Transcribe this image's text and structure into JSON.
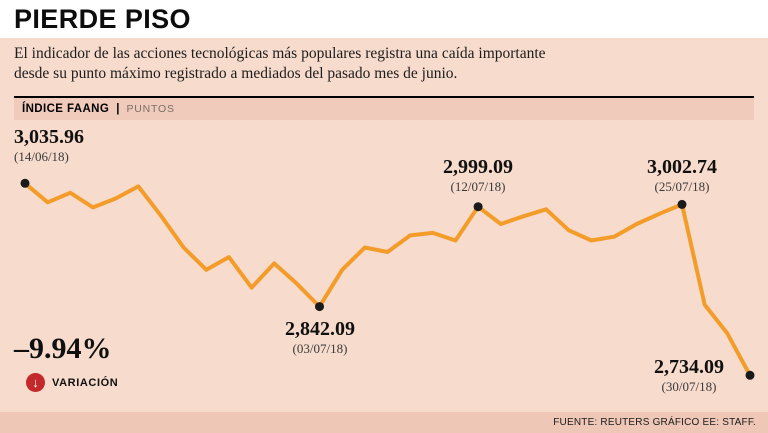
{
  "title": "PIERDE PISO",
  "subtitle": {
    "line1": "El indicador de las acciones tecnológicas más populares registra una caída importante",
    "line2": "desde su punto máximo registrado a mediados del pasado mes de junio."
  },
  "chart_header": {
    "index_label": "ÍNDICE FAANG",
    "divider": "|",
    "units_label": "PUNTOS"
  },
  "variation": {
    "value": "–9.94%",
    "label": "VARIACIÓN",
    "icon": "down-arrow-in-circle",
    "icon_glyph": "↓",
    "icon_color": "#c3292b"
  },
  "source": "FUENTE: REUTERS GRÁFICO EE: STAFF.",
  "colors": {
    "background": "#f7dbcc",
    "band": "#f0cabb",
    "line": "#f39c2a",
    "marker": "#1a1a1a"
  },
  "chart_data": {
    "type": "line",
    "title": "ÍNDICE FAANG",
    "ylabel": "PUNTOS",
    "x_range": [
      "14/06/18",
      "30/07/18"
    ],
    "ylim": [
      2700,
      3060
    ],
    "grid": false,
    "legend": false,
    "line_color": "#f39c2a",
    "values": [
      3035.96,
      3006,
      3021,
      2998,
      3012,
      3031,
      2985,
      2935,
      2900,
      2920,
      2872,
      2910,
      2878,
      2842.09,
      2900,
      2935,
      2928,
      2954,
      2958,
      2946,
      2999.09,
      2972,
      2984,
      2995,
      2962,
      2946,
      2952,
      2972,
      2988,
      3002.74,
      2845,
      2800,
      2734.09
    ],
    "marker_indices": [
      0,
      13,
      20,
      29,
      32
    ],
    "annotations": [
      {
        "index": 0,
        "value": "3,035.96",
        "date": "(14/06/18)"
      },
      {
        "index": 13,
        "value": "2,842.09",
        "date": "(03/07/18)"
      },
      {
        "index": 20,
        "value": "2,999.09",
        "date": "(12/07/18)"
      },
      {
        "index": 29,
        "value": "3,002.74",
        "date": "(25/07/18)"
      },
      {
        "index": 32,
        "value": "2,734.09",
        "date": "(30/07/18)"
      }
    ]
  }
}
